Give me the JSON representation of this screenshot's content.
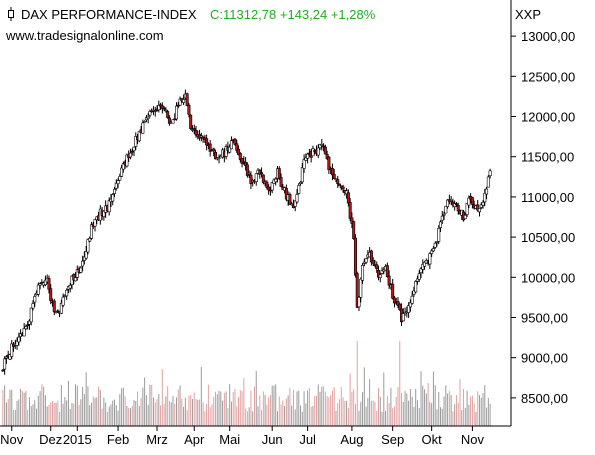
{
  "header": {
    "instrument": "DAX PERFORMANCE-INDEX",
    "quote": "C:11312,78 +143,24 +1,28%",
    "source": "www.tradesignalonline.com",
    "symbol": "XXP",
    "icon": "candlestick-icon"
  },
  "colors": {
    "up_fill": "#ffffff",
    "down_fill": "#b01818",
    "candle_outline": "#000000",
    "quote_text": "#1fae1f",
    "volume_up": "#9a9a9a",
    "volume_down": "#e3a0a0",
    "axis": "#000000"
  },
  "chart_data": {
    "type": "candlestick",
    "title": "DAX PERFORMANCE-INDEX",
    "xlabel": "",
    "ylabel": "",
    "ylim": [
      8150,
      13350
    ],
    "y_ticks": [
      8500,
      9000,
      9500,
      10000,
      10500,
      11000,
      11500,
      12000,
      12500,
      13000
    ],
    "y_tick_labels": [
      "8500,00",
      "9000,00",
      "9500,00",
      "10000,00",
      "10500,00",
      "11000,00",
      "11500,00",
      "12000,00",
      "12500,00",
      "13000,00"
    ],
    "x_tick_labels": [
      "Nov",
      "Dez",
      "2015",
      "Feb",
      "Mrz",
      "Apr",
      "Mai",
      "Jun",
      "Jul",
      "Aug",
      "Sep",
      "Okt",
      "Nov"
    ],
    "x_tick_positions": [
      5,
      27,
      42,
      65,
      87,
      108,
      128,
      152,
      172,
      197,
      220,
      242,
      265
    ],
    "close_series": [
      [
        0,
        8880
      ],
      [
        5,
        9130
      ],
      [
        10,
        9280
      ],
      [
        15,
        9500
      ],
      [
        20,
        9900
      ],
      [
        25,
        9970
      ],
      [
        28,
        9650
      ],
      [
        32,
        9550
      ],
      [
        36,
        9860
      ],
      [
        40,
        10000
      ],
      [
        45,
        10150
      ],
      [
        50,
        10600
      ],
      [
        55,
        10800
      ],
      [
        60,
        10900
      ],
      [
        65,
        11250
      ],
      [
        70,
        11500
      ],
      [
        75,
        11700
      ],
      [
        80,
        11950
      ],
      [
        85,
        12050
      ],
      [
        90,
        12120
      ],
      [
        95,
        11900
      ],
      [
        100,
        12200
      ],
      [
        103,
        12250
      ],
      [
        106,
        11900
      ],
      [
        110,
        11800
      ],
      [
        115,
        11650
      ],
      [
        120,
        11500
      ],
      [
        125,
        11550
      ],
      [
        130,
        11700
      ],
      [
        135,
        11450
      ],
      [
        140,
        11200
      ],
      [
        145,
        11300
      ],
      [
        150,
        11050
      ],
      [
        155,
        11300
      ],
      [
        160,
        11000
      ],
      [
        165,
        10900
      ],
      [
        170,
        11450
      ],
      [
        175,
        11550
      ],
      [
        180,
        11650
      ],
      [
        185,
        11300
      ],
      [
        190,
        11150
      ],
      [
        194,
        11050
      ],
      [
        198,
        10500
      ],
      [
        200,
        9600
      ],
      [
        203,
        10200
      ],
      [
        207,
        10300
      ],
      [
        212,
        10000
      ],
      [
        216,
        10150
      ],
      [
        220,
        9750
      ],
      [
        225,
        9500
      ],
      [
        230,
        9700
      ],
      [
        235,
        10050
      ],
      [
        240,
        10200
      ],
      [
        245,
        10500
      ],
      [
        250,
        10900
      ],
      [
        255,
        10950
      ],
      [
        260,
        10750
      ],
      [
        264,
        11000
      ],
      [
        268,
        10800
      ],
      [
        272,
        11050
      ],
      [
        275,
        11313
      ]
    ],
    "volume_scale": "relative, no printed volume axis"
  }
}
